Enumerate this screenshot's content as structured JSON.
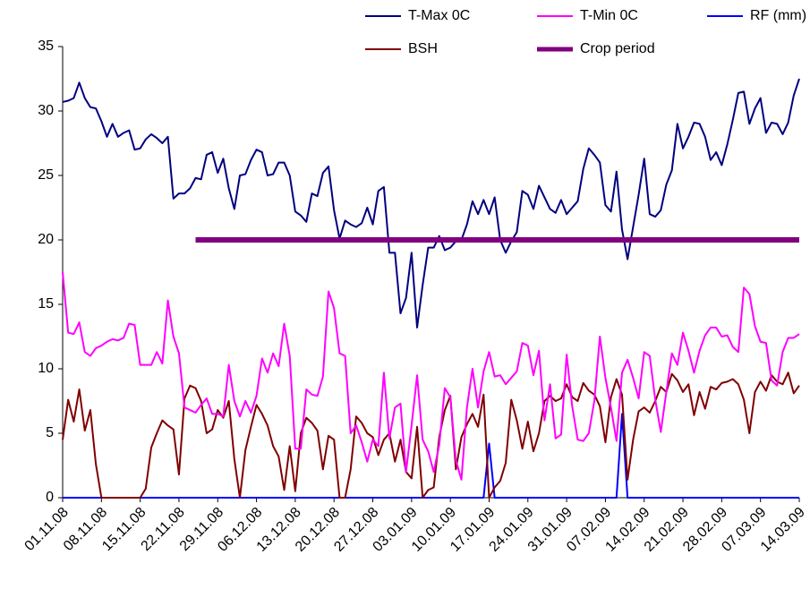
{
  "chart_data": {
    "type": "line",
    "categories": [
      "01.11.08",
      null,
      null,
      null,
      null,
      null,
      null,
      "08.11.08",
      null,
      null,
      null,
      null,
      null,
      null,
      "15.11.08",
      null,
      null,
      null,
      null,
      null,
      null,
      "22.11.08",
      null,
      null,
      null,
      null,
      null,
      null,
      "29.11.08",
      null,
      null,
      null,
      null,
      null,
      null,
      "06.12.08",
      null,
      null,
      null,
      null,
      null,
      null,
      "13.12.08",
      null,
      null,
      null,
      null,
      null,
      null,
      "20.12.08",
      null,
      null,
      null,
      null,
      null,
      null,
      "27.12.08",
      null,
      null,
      null,
      null,
      null,
      null,
      "03.01.09",
      null,
      null,
      null,
      null,
      null,
      null,
      "10.01.09",
      null,
      null,
      null,
      null,
      null,
      null,
      "17.01.09",
      null,
      null,
      null,
      null,
      null,
      null,
      "24.01.09",
      null,
      null,
      null,
      null,
      null,
      null,
      "31.01.09",
      null,
      null,
      null,
      null,
      null,
      null,
      "07.02.09",
      null,
      null,
      null,
      null,
      null,
      null,
      "14.02.09",
      null,
      null,
      null,
      null,
      null,
      null,
      "21.02.09",
      null,
      null,
      null,
      null,
      null,
      null,
      "28.02.09",
      null,
      null,
      null,
      null,
      null,
      null,
      "07.03.09",
      null,
      null,
      null,
      null,
      null,
      null,
      "14.03.09"
    ],
    "series": [
      {
        "name": "T-Max 0C",
        "color": "#000080",
        "values": [
          30.7,
          30.8,
          31,
          32.2,
          31,
          30.3,
          30.2,
          29.2,
          28,
          29,
          28,
          28.3,
          28.5,
          27,
          27.1,
          27.8,
          28.2,
          27.9,
          27.5,
          28,
          23.2,
          23.6,
          23.6,
          24,
          24.8,
          24.7,
          26.6,
          26.8,
          25.2,
          26.3,
          24,
          22.4,
          25,
          25.1,
          26.2,
          27,
          26.8,
          25,
          25.1,
          26,
          26,
          25,
          22.2,
          21.9,
          21.4,
          23.6,
          23.4,
          25.2,
          25.7,
          22.3,
          20.1,
          21.5,
          21.2,
          21,
          21.3,
          22.5,
          21.2,
          23.8,
          24.1,
          19,
          19,
          14.3,
          15.5,
          19,
          13.2,
          16.5,
          19.4,
          19.4,
          20.3,
          19.2,
          19.4,
          19.9,
          20,
          21.2,
          23,
          22,
          23.1,
          22,
          23.3,
          20,
          19,
          19.9,
          20.6,
          23.8,
          23.5,
          22.4,
          24.2,
          23.3,
          22.4,
          22.1,
          23.1,
          22,
          22.5,
          23,
          25.5,
          27.1,
          26.6,
          26,
          22.7,
          22.2,
          25.3,
          20.8,
          18.5,
          21,
          23.5,
          26.3,
          22,
          21.8,
          22.3,
          24.3,
          25.4,
          29,
          27.1,
          28,
          29.1,
          29,
          28,
          26.2,
          26.8,
          25.8,
          27.4,
          29.3,
          31.4,
          31.5,
          29,
          30.2,
          31,
          28.3,
          29.1,
          29,
          28.2,
          29.1,
          31.2,
          32.5
        ]
      },
      {
        "name": "T-Min 0C",
        "color": "#ff00ff",
        "values": [
          17.5,
          12.8,
          12.7,
          13.6,
          11.3,
          11,
          11.6,
          11.8,
          12.1,
          12.3,
          12.2,
          12.4,
          13.5,
          13.4,
          10.3,
          10.3,
          10.3,
          11.3,
          10.4,
          15.3,
          12.5,
          11.2,
          7,
          6.8,
          6.6,
          7.2,
          7.7,
          6.5,
          6.5,
          6.3,
          10.3,
          7.5,
          6.3,
          7.5,
          6.6,
          7.9,
          10.8,
          9.7,
          11.2,
          10.2,
          13.5,
          11,
          3.8,
          3.8,
          8.4,
          8,
          7.9,
          9.4,
          16,
          14.7,
          11.2,
          11,
          5,
          5.6,
          4.3,
          2.8,
          4.5,
          4,
          9.7,
          4.6,
          7,
          7.3,
          2,
          5.6,
          9.5,
          4.5,
          3.6,
          2,
          4.1,
          8.5,
          7.8,
          2.9,
          1.4,
          7,
          10,
          7,
          9.8,
          11.3,
          9.4,
          9.5,
          8.8,
          9.3,
          9.8,
          12,
          11.8,
          9.5,
          11.4,
          6,
          8.8,
          4.6,
          4.9,
          11.1,
          7.1,
          4.5,
          4.4,
          5,
          7.5,
          12.5,
          9.3,
          7,
          4.4,
          9.7,
          10.7,
          9.3,
          7.7,
          11.3,
          11,
          7.6,
          5.1,
          8.2,
          11.2,
          10.3,
          12.8,
          11.4,
          9.7,
          11.4,
          12.6,
          13.2,
          13.2,
          12.5,
          12.6,
          11.7,
          11.3,
          16.3,
          15.8,
          13.3,
          12.1,
          12,
          9.1,
          8.7,
          11.3,
          12.4,
          12.4,
          12.7
        ]
      },
      {
        "name": "RF (mm)",
        "color": "#0000ff",
        "values": [
          0,
          0,
          0,
          0,
          0,
          0,
          0,
          0,
          0,
          0,
          0,
          0,
          0,
          0,
          0,
          0,
          0,
          0,
          0,
          0,
          0,
          0,
          0,
          0,
          0,
          0,
          0,
          0,
          0,
          0,
          0,
          0,
          0,
          0,
          0,
          0,
          0,
          0,
          0,
          0,
          0,
          0,
          0,
          0,
          0,
          0,
          0,
          0,
          0,
          0,
          0,
          0,
          0,
          0,
          0,
          0,
          0,
          0,
          0,
          0,
          0,
          0,
          0,
          0,
          0,
          0,
          0,
          0,
          0,
          0,
          0,
          0,
          0,
          0,
          0,
          0,
          0,
          4.2,
          0,
          0,
          0,
          0,
          0,
          0,
          0,
          0,
          0,
          0,
          0,
          0,
          0,
          0,
          0,
          0,
          0,
          0,
          0,
          0,
          0,
          0,
          0,
          6.5,
          0,
          0,
          0,
          0,
          0,
          0,
          0,
          0,
          0,
          0,
          0,
          0,
          0,
          0,
          0,
          0,
          0,
          0,
          0,
          0,
          0,
          0,
          0,
          0,
          0,
          0,
          0,
          0,
          0,
          0,
          0,
          0
        ]
      },
      {
        "name": "BSH",
        "color": "#800000",
        "values": [
          4.5,
          7.6,
          5.9,
          8.4,
          5.2,
          6.8,
          2.6,
          0,
          0,
          0,
          0,
          0,
          0,
          0,
          0,
          0.7,
          3.9,
          5,
          6,
          5.6,
          5.3,
          1.8,
          7.7,
          8.7,
          8.5,
          7.5,
          5,
          5.3,
          6.8,
          6.2,
          7.5,
          3,
          0,
          3.7,
          5.5,
          7.2,
          6.5,
          5.6,
          4,
          3.2,
          0.6,
          4,
          0.5,
          5,
          6.2,
          5.8,
          5.2,
          2.2,
          4.8,
          4.5,
          0,
          0,
          2.2,
          6.3,
          5.8,
          5,
          4.7,
          3.3,
          4.5,
          5,
          2.8,
          4.5,
          2,
          1.5,
          5.5,
          0,
          0.6,
          0.8,
          4.7,
          6.8,
          7.9,
          2.2,
          4.7,
          5.7,
          6.5,
          5.5,
          8,
          0,
          0.8,
          1.3,
          2.7,
          7.6,
          6,
          3.8,
          5.9,
          3.6,
          5,
          7.5,
          7.9,
          7.5,
          7.7,
          8.8,
          7.8,
          7.5,
          8.9,
          8.3,
          8,
          7.1,
          4.3,
          7.8,
          9.2,
          8,
          1.4,
          4.5,
          6.7,
          7,
          6.6,
          7.5,
          8.6,
          8.2,
          9.6,
          9.1,
          8.2,
          8.8,
          6.4,
          8.2,
          6.9,
          8.6,
          8.4,
          8.9,
          9,
          9.2,
          8.8,
          7.6,
          5,
          8.2,
          9,
          8.3,
          9.5,
          9,
          8.8,
          9.7,
          8.1,
          8.7
        ]
      },
      {
        "name": "Crop period",
        "color": "#800080",
        "values": [
          null,
          null,
          null,
          null,
          null,
          null,
          null,
          null,
          null,
          null,
          null,
          null,
          null,
          null,
          null,
          null,
          null,
          null,
          null,
          null,
          null,
          null,
          null,
          null,
          20,
          20,
          20,
          20,
          20,
          20,
          20,
          20,
          20,
          20,
          20,
          20,
          20,
          20,
          20,
          20,
          20,
          20,
          20,
          20,
          20,
          20,
          20,
          20,
          20,
          20,
          20,
          20,
          20,
          20,
          20,
          20,
          20,
          20,
          20,
          20,
          20,
          20,
          20,
          20,
          20,
          20,
          20,
          20,
          20,
          20,
          20,
          20,
          20,
          20,
          20,
          20,
          20,
          20,
          20,
          20,
          20,
          20,
          20,
          20,
          20,
          20,
          20,
          20,
          20,
          20,
          20,
          20,
          20,
          20,
          20,
          20,
          20,
          20,
          20,
          20,
          20,
          20,
          20,
          20,
          20,
          20,
          20,
          20,
          20,
          20,
          20,
          20,
          20,
          20,
          20,
          20,
          20,
          20,
          20,
          20,
          20,
          20,
          20,
          20,
          20,
          20,
          20,
          20,
          20,
          20,
          20,
          20,
          20,
          20
        ]
      }
    ],
    "ylim": [
      0,
      35
    ],
    "yticks": [
      0,
      5,
      10,
      15,
      20,
      25,
      30,
      35
    ],
    "grid": false,
    "legend": "top"
  }
}
